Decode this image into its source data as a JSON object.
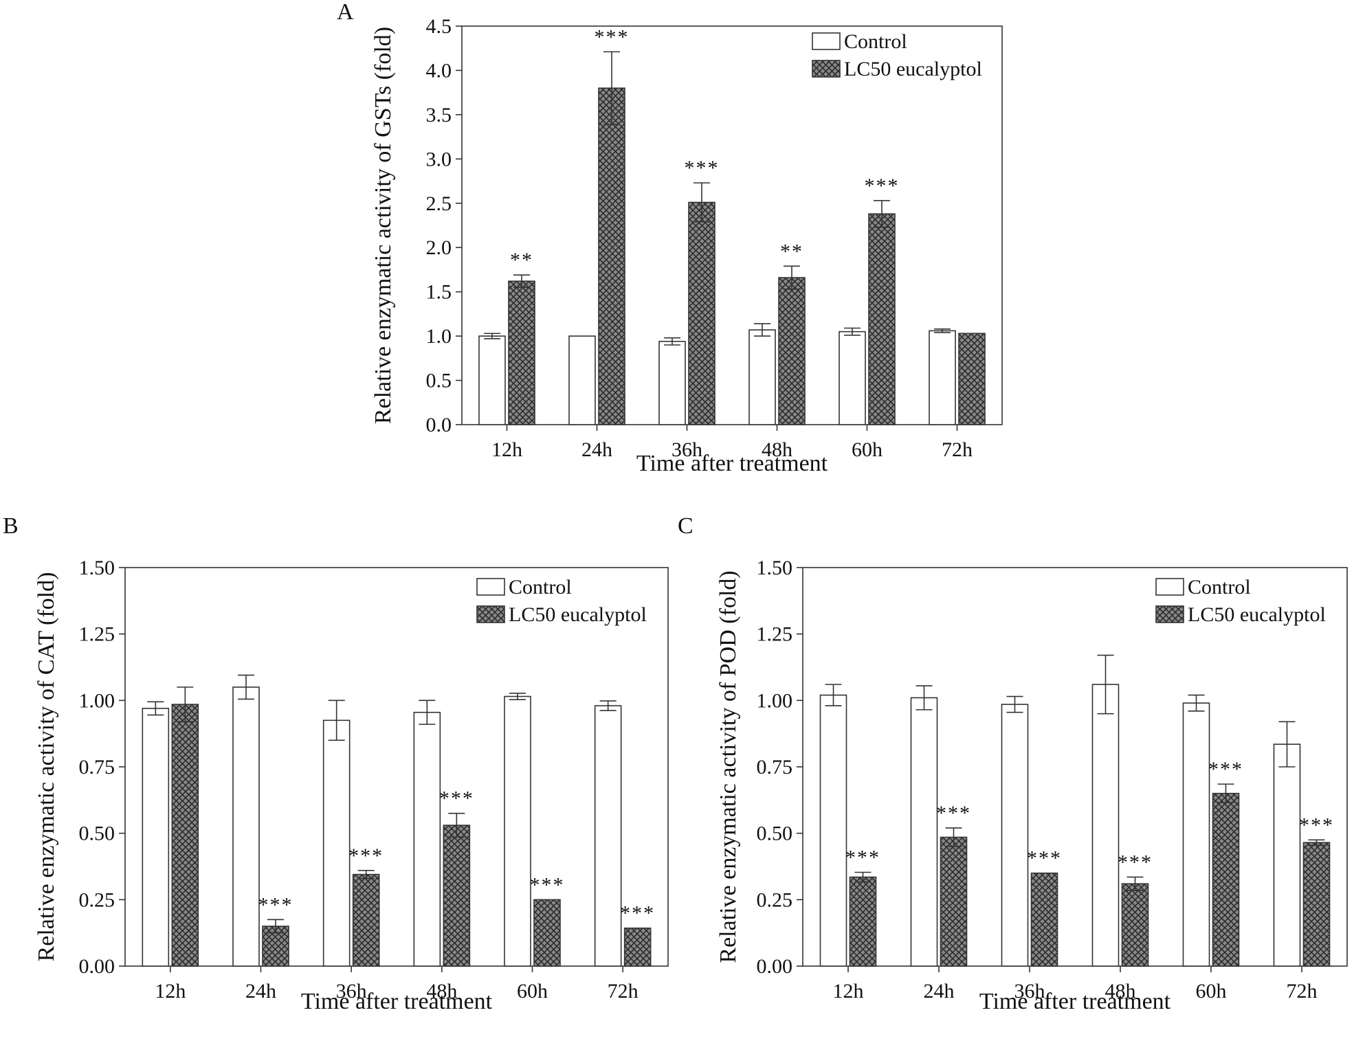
{
  "colors": {
    "control_fill": "#ffffff",
    "treat_fill": "#888888",
    "treat_hatch": "#2b2b2b",
    "stroke": "#333333"
  },
  "chart_data": [
    {
      "id": "A",
      "panel_label": "A",
      "type": "bar",
      "ylabel": "Relative enzymatic activity of GSTs (fold)",
      "xlabel": "Time after treatment",
      "ylim": [
        0,
        4.5
      ],
      "yticks": [
        "0.0",
        "0.5",
        "1.0",
        "1.5",
        "2.0",
        "2.5",
        "3.0",
        "3.5",
        "4.0",
        "4.5"
      ],
      "categories": [
        "12h",
        "24h",
        "36h",
        "48h",
        "60h",
        "72h"
      ],
      "legend": [
        "Control",
        "LC50 eucalyptol"
      ],
      "series": [
        {
          "name": "Control",
          "values": [
            1.0,
            1.0,
            0.94,
            1.07,
            1.05,
            1.06
          ],
          "errors": [
            0.03,
            0.0,
            0.04,
            0.07,
            0.04,
            0.02
          ]
        },
        {
          "name": "LC50 eucalyptol",
          "values": [
            1.62,
            3.8,
            2.51,
            1.66,
            2.38,
            1.03
          ],
          "errors": [
            0.07,
            0.41,
            0.22,
            0.13,
            0.15,
            0.0
          ]
        }
      ],
      "significance": [
        "**",
        "***",
        "***",
        "**",
        "***",
        ""
      ]
    },
    {
      "id": "B",
      "panel_label": "B",
      "type": "bar",
      "ylabel": "Relative enzymatic activity of CAT (fold)",
      "xlabel": "Time after treatment",
      "ylim": [
        0,
        1.5
      ],
      "yticks": [
        "0.00",
        "0.25",
        "0.50",
        "0.75",
        "1.00",
        "1.25",
        "1.50"
      ],
      "categories": [
        "12h",
        "24h",
        "36h",
        "48h",
        "60h",
        "72h"
      ],
      "legend": [
        "Control",
        "LC50 eucalyptol"
      ],
      "series": [
        {
          "name": "Control",
          "values": [
            0.97,
            1.05,
            0.925,
            0.955,
            1.015,
            0.98
          ],
          "errors": [
            0.025,
            0.045,
            0.075,
            0.045,
            0.012,
            0.018
          ]
        },
        {
          "name": "LC50 eucalyptol",
          "values": [
            0.985,
            0.15,
            0.345,
            0.53,
            0.25,
            0.143
          ],
          "errors": [
            0.065,
            0.025,
            0.015,
            0.045,
            0.0,
            0.0
          ]
        }
      ],
      "significance": [
        "",
        "***",
        "***",
        "***",
        "***",
        "***"
      ]
    },
    {
      "id": "C",
      "panel_label": "C",
      "type": "bar",
      "ylabel": "Relative enzymatic activity of POD (fold)",
      "xlabel": "Time after treatment",
      "ylim": [
        0,
        1.5
      ],
      "yticks": [
        "0.00",
        "0.25",
        "0.50",
        "0.75",
        "1.00",
        "1.25",
        "1.50"
      ],
      "categories": [
        "12h",
        "24h",
        "36h",
        "48h",
        "60h",
        "72h"
      ],
      "legend": [
        "Control",
        "LC50 eucalyptol"
      ],
      "series": [
        {
          "name": "Control",
          "values": [
            1.02,
            1.01,
            0.985,
            1.06,
            0.99,
            0.835
          ],
          "errors": [
            0.04,
            0.045,
            0.03,
            0.11,
            0.03,
            0.085
          ]
        },
        {
          "name": "LC50 eucalyptol",
          "values": [
            0.335,
            0.485,
            0.35,
            0.31,
            0.65,
            0.465
          ],
          "errors": [
            0.018,
            0.035,
            0.0,
            0.025,
            0.035,
            0.01
          ]
        }
      ],
      "significance": [
        "***",
        "***",
        "***",
        "***",
        "***",
        "***"
      ]
    }
  ]
}
